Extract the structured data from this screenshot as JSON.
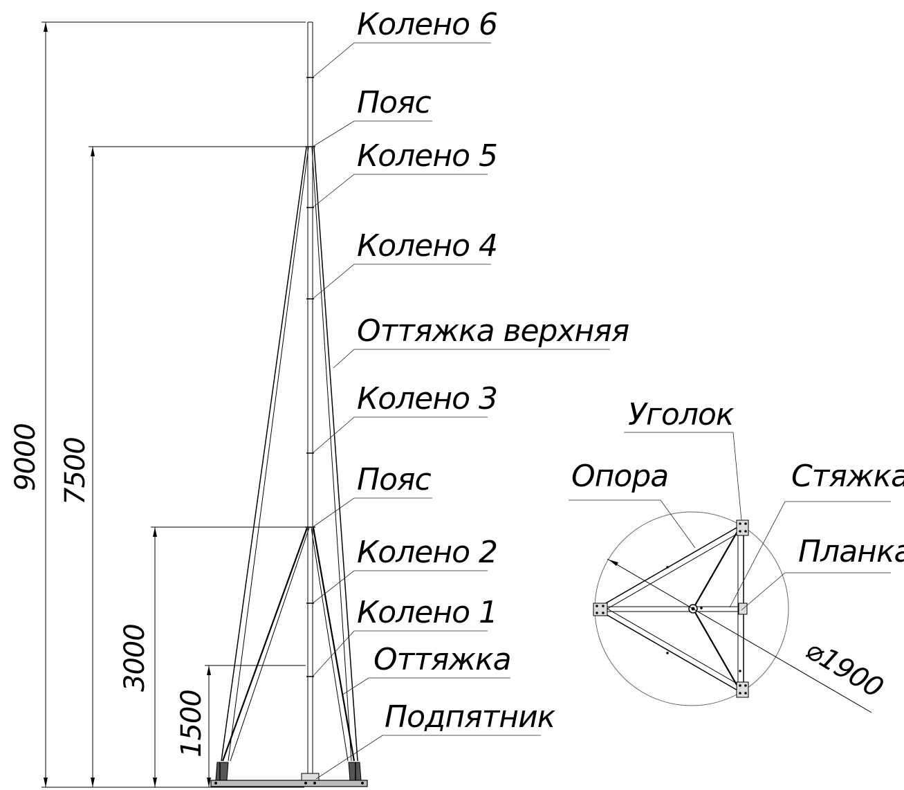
{
  "labels": {
    "koleno6": "Колено 6",
    "poyas_top": "Пояс",
    "koleno5": "Колено 5",
    "koleno4": "Колено 4",
    "ottyazhka_verkhnyaya": "Оттяжка верхняя",
    "koleno3": "Колено 3",
    "poyas_bottom": "Пояс",
    "koleno2": "Колено 2",
    "koleno1": "Колено 1",
    "ottyazhka": "Оттяжка",
    "podpyatnik": "Подпятник",
    "ugolok": "Уголок",
    "opora": "Опора",
    "styazhka": "Стяжка",
    "planka": "Планка"
  },
  "dimensions": {
    "total_height": "9000",
    "guy_upper_height": "7500",
    "guy_lower_height": "3000",
    "knee1_height": "1500",
    "base_diameter": "⌀1900"
  }
}
